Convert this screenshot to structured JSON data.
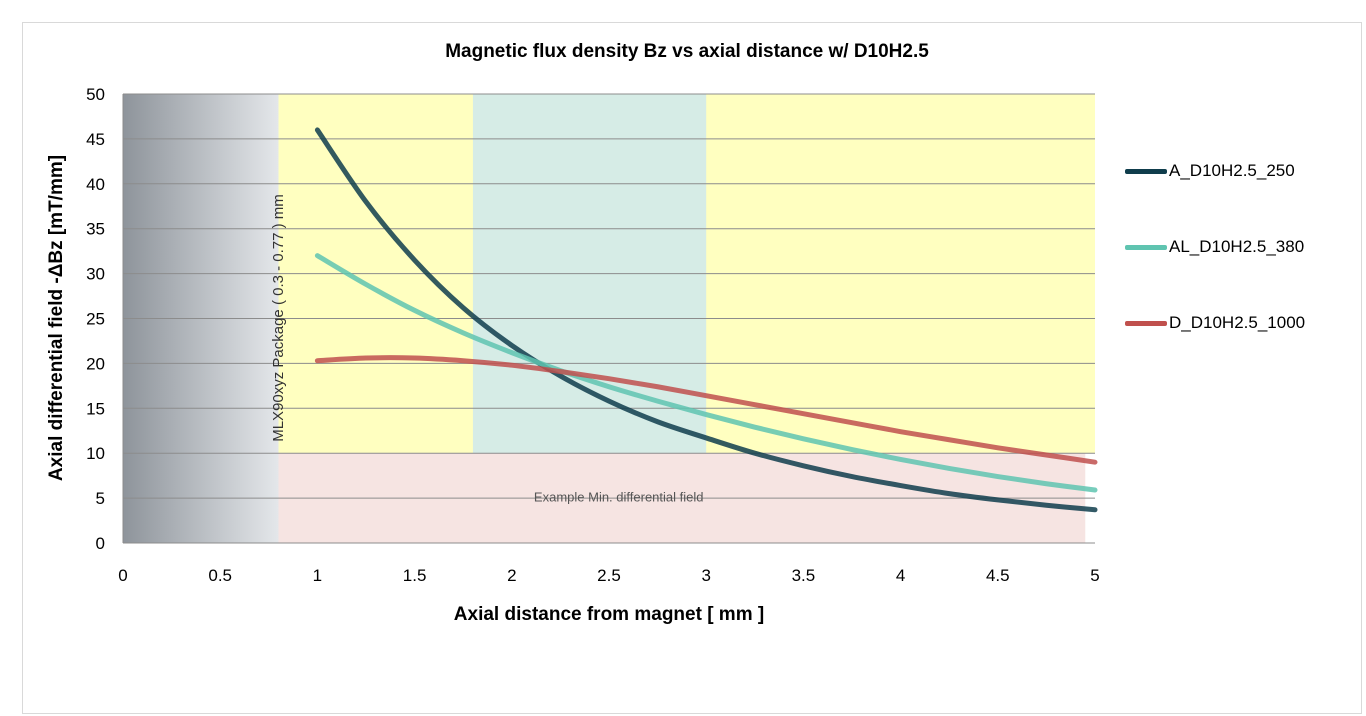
{
  "chart_data": {
    "type": "line",
    "title": "Magnetic flux density Bz vs axial distance w/ D10H2.5",
    "xlabel": "Axial distance from magnet [ mm ]",
    "ylabel": "Axial differential field -ΔBz [mT/mm]",
    "xlim": [
      0,
      5
    ],
    "ylim": [
      0,
      50
    ],
    "x_ticks": [
      "0",
      "0.5",
      "1",
      "1.5",
      "2",
      "2.5",
      "3",
      "3.5",
      "4",
      "4.5",
      "5"
    ],
    "y_ticks": [
      "0",
      "5",
      "10",
      "15",
      "20",
      "25",
      "30",
      "35",
      "40",
      "45",
      "50"
    ],
    "grid": "horizontal",
    "legend_position": "right",
    "series": [
      {
        "name": "A_D10H2.5_250",
        "color": "#0f3d4c",
        "x": [
          1.0,
          1.25,
          1.5,
          1.75,
          2.0,
          2.25,
          2.5,
          2.75,
          3.0,
          3.25,
          3.5,
          3.75,
          4.0,
          4.25,
          4.5,
          4.75,
          5.0
        ],
        "y": [
          46.0,
          38.0,
          31.5,
          26.2,
          22.0,
          18.6,
          15.8,
          13.5,
          11.7,
          10.0,
          8.6,
          7.4,
          6.4,
          5.5,
          4.8,
          4.2,
          3.7
        ]
      },
      {
        "name": "AL_D10H2.5_380",
        "color": "#5fc4b0",
        "x": [
          1.0,
          1.25,
          1.5,
          1.75,
          2.0,
          2.25,
          2.5,
          2.75,
          3.0,
          3.25,
          3.5,
          3.75,
          4.0,
          4.25,
          4.5,
          4.75,
          5.0
        ],
        "y": [
          32.0,
          28.8,
          25.9,
          23.4,
          21.2,
          19.2,
          17.4,
          15.8,
          14.3,
          12.9,
          11.6,
          10.4,
          9.3,
          8.3,
          7.4,
          6.6,
          5.9
        ]
      },
      {
        "name": "D_D10H2.5_1000",
        "color": "#c0504d",
        "x": [
          1.0,
          1.25,
          1.5,
          1.75,
          2.0,
          2.25,
          2.5,
          2.75,
          3.0,
          3.25,
          3.5,
          3.75,
          4.0,
          4.25,
          4.5,
          4.75,
          5.0
        ],
        "y": [
          20.3,
          20.6,
          20.6,
          20.3,
          19.8,
          19.1,
          18.3,
          17.4,
          16.4,
          15.4,
          14.4,
          13.4,
          12.4,
          11.5,
          10.6,
          9.8,
          9.0
        ]
      }
    ],
    "regions": [
      {
        "label": "MLX90xyz Package ( 0.3  - 0.77 ) mm",
        "x": [
          0,
          0.8
        ],
        "y": [
          0,
          50
        ],
        "color": "#a8adb3"
      },
      {
        "label": "",
        "x": [
          0.8,
          5.0
        ],
        "y": [
          10,
          50
        ],
        "color": "#ffffc0"
      },
      {
        "label": "",
        "x": [
          1.8,
          3.0
        ],
        "y": [
          10,
          50
        ],
        "color": "#d6ece6"
      },
      {
        "label": "Example Min. differential field",
        "x": [
          0.8,
          4.95
        ],
        "y": [
          0,
          10
        ],
        "color": "#f6e4e2"
      }
    ]
  }
}
